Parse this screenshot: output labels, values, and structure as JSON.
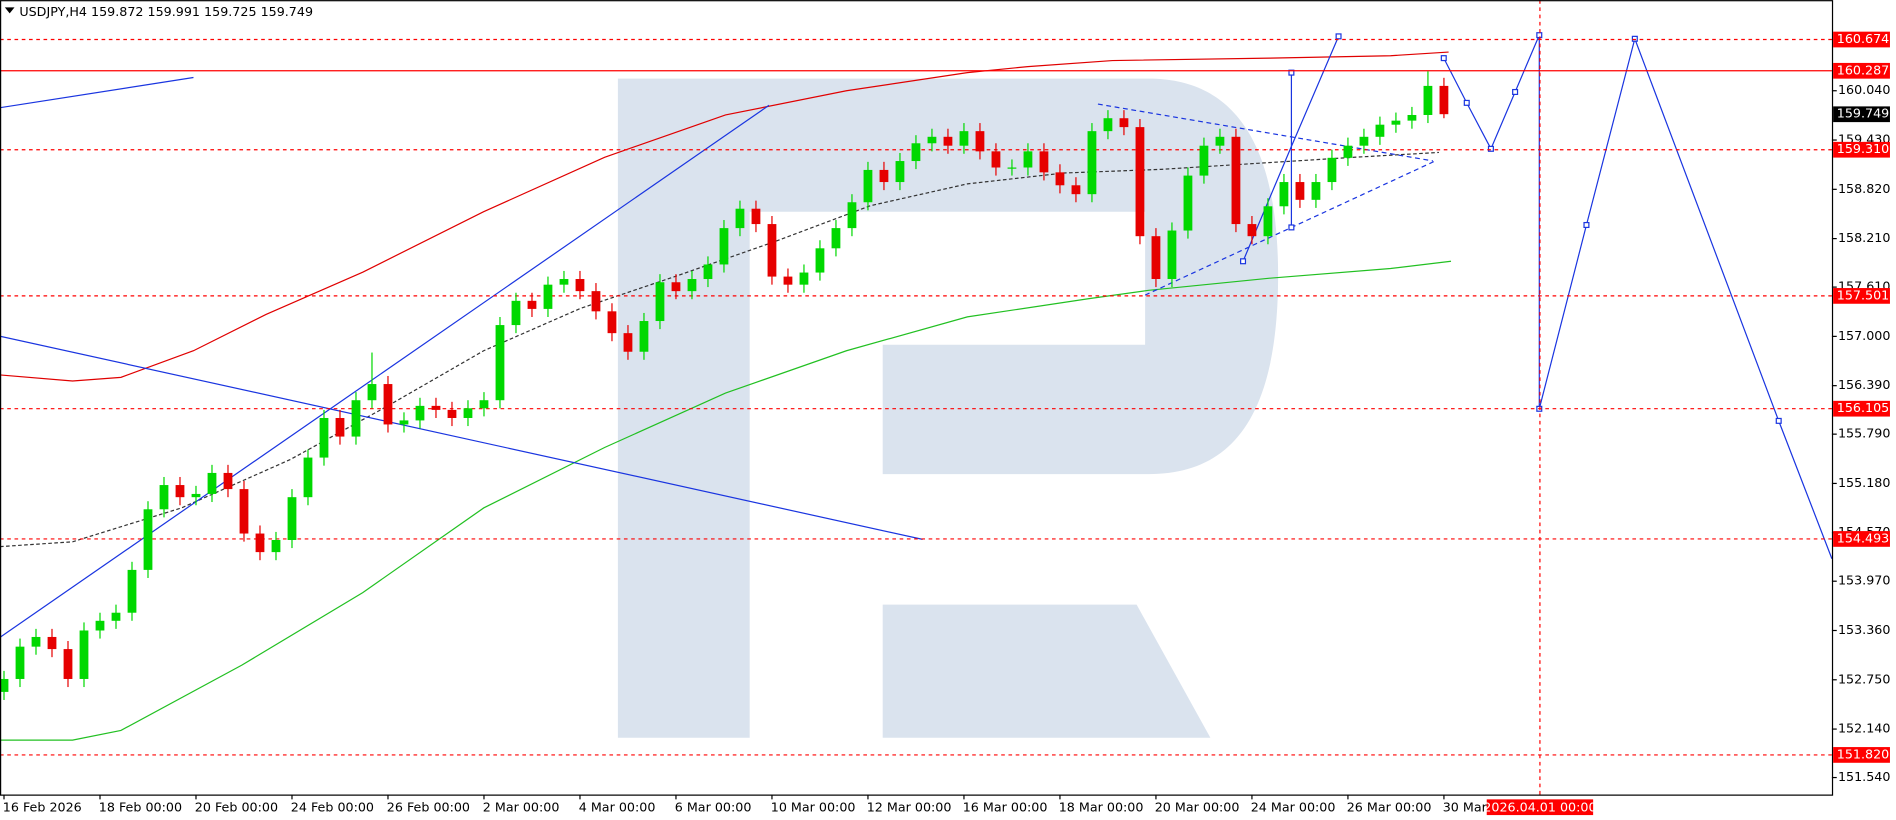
{
  "chart_data": {
    "type": "candlestick",
    "symbol": "USDJPY,H4",
    "ohlc": [
      159.872,
      159.991,
      159.725,
      159.749
    ],
    "x": [
      0,
      2,
      4,
      6,
      8,
      10,
      12,
      14,
      16,
      18,
      20,
      22,
      24,
      26,
      28,
      30,
      32,
      34,
      36,
      38,
      40,
      42,
      44,
      46,
      48,
      50,
      52,
      54,
      56,
      58,
      60,
      62,
      64,
      66,
      68,
      70,
      72,
      74,
      76,
      78,
      80,
      82,
      84,
      86,
      88,
      90,
      92,
      94,
      96,
      98,
      100,
      102,
      104,
      106,
      108,
      110,
      112,
      114,
      116,
      118,
      120,
      122,
      124,
      126,
      128,
      130,
      132,
      134,
      136,
      138,
      140,
      142,
      144,
      146,
      148,
      150,
      152,
      154,
      156,
      158,
      160,
      162,
      164,
      166,
      168,
      170,
      172,
      174,
      176,
      178,
      180
    ],
    "open": [
      152.6,
      152.76,
      153.16,
      153.28,
      153.13,
      152.76,
      153.36,
      153.48,
      153.58,
      154.11,
      154.86,
      155.16,
      155.01,
      155.05,
      155.31,
      155.11,
      154.56,
      154.33,
      154.48,
      155.01,
      155.5,
      155.99,
      155.76,
      156.21,
      156.41,
      155.91,
      155.96,
      156.14,
      156.09,
      155.99,
      156.11,
      156.21,
      157.14,
      157.44,
      157.34,
      157.64,
      157.71,
      157.56,
      157.31,
      157.04,
      156.81,
      157.19,
      157.67,
      157.56,
      157.71,
      157.89,
      158.34,
      158.58,
      158.39,
      157.74,
      157.64,
      157.79,
      158.09,
      158.34,
      158.66,
      159.06,
      158.91,
      159.17,
      159.39,
      159.47,
      159.36,
      159.54,
      159.29,
      159.09,
      159.09,
      159.29,
      159.03,
      158.87,
      158.76,
      159.54,
      159.7,
      159.59,
      158.24,
      157.71,
      158.31,
      158.99,
      159.36,
      159.47,
      158.39,
      158.24,
      158.61,
      158.91,
      158.69,
      158.91,
      159.21,
      159.36,
      159.47,
      159.62,
      159.67,
      159.74,
      160.1
    ],
    "high": [
      152.86,
      153.26,
      153.38,
      153.38,
      153.23,
      153.46,
      153.58,
      153.68,
      154.21,
      154.96,
      155.26,
      155.26,
      155.15,
      155.41,
      155.41,
      155.21,
      154.66,
      154.58,
      155.11,
      155.6,
      156.09,
      156.09,
      156.31,
      156.8,
      156.51,
      156.06,
      156.24,
      156.24,
      156.19,
      156.21,
      156.31,
      157.24,
      157.54,
      157.54,
      157.74,
      157.81,
      157.81,
      157.66,
      157.41,
      157.14,
      157.29,
      157.77,
      157.77,
      157.81,
      157.99,
      158.44,
      158.68,
      158.68,
      158.49,
      157.84,
      157.89,
      158.19,
      158.44,
      158.76,
      159.16,
      159.16,
      159.27,
      159.49,
      159.57,
      159.57,
      159.64,
      159.64,
      159.39,
      159.19,
      159.39,
      159.39,
      159.13,
      158.97,
      159.64,
      159.8,
      159.8,
      159.69,
      158.34,
      158.41,
      159.09,
      159.46,
      159.57,
      159.57,
      158.49,
      158.71,
      159.01,
      159.01,
      159.01,
      159.31,
      159.46,
      159.57,
      159.72,
      159.77,
      159.84,
      160.28,
      160.2
    ],
    "low": [
      152.5,
      152.66,
      153.06,
      153.03,
      152.66,
      152.66,
      153.26,
      153.38,
      153.48,
      154.01,
      154.76,
      154.91,
      154.91,
      154.95,
      155.01,
      154.46,
      154.23,
      154.23,
      154.38,
      154.91,
      155.4,
      155.66,
      155.66,
      156.11,
      155.81,
      155.81,
      155.86,
      155.99,
      155.89,
      155.89,
      156.01,
      156.11,
      157.04,
      157.24,
      157.24,
      157.54,
      157.46,
      157.21,
      156.94,
      156.71,
      156.71,
      157.09,
      157.46,
      157.46,
      157.61,
      157.79,
      158.24,
      158.29,
      157.64,
      157.54,
      157.54,
      157.69,
      157.99,
      158.24,
      158.56,
      158.81,
      158.81,
      159.07,
      159.29,
      159.26,
      159.26,
      159.19,
      158.99,
      158.99,
      158.99,
      158.93,
      158.77,
      158.66,
      158.66,
      159.44,
      159.49,
      158.14,
      157.61,
      157.61,
      158.21,
      158.89,
      159.26,
      158.29,
      158.14,
      158.14,
      158.51,
      158.59,
      158.59,
      158.81,
      159.11,
      159.26,
      159.37,
      159.52,
      159.57,
      159.64,
      159.7
    ],
    "close": [
      152.76,
      153.16,
      153.28,
      153.13,
      152.76,
      153.36,
      153.48,
      153.58,
      154.11,
      154.86,
      155.16,
      155.01,
      155.05,
      155.31,
      155.11,
      154.56,
      154.33,
      154.48,
      155.01,
      155.5,
      155.99,
      155.76,
      156.21,
      156.41,
      155.91,
      155.96,
      156.14,
      156.09,
      155.99,
      156.11,
      156.21,
      157.14,
      157.44,
      157.34,
      157.64,
      157.71,
      157.56,
      157.31,
      157.04,
      156.81,
      157.19,
      157.67,
      157.56,
      157.71,
      157.89,
      158.34,
      158.58,
      158.39,
      157.74,
      157.64,
      157.79,
      158.09,
      158.34,
      158.66,
      159.06,
      158.91,
      159.17,
      159.39,
      159.47,
      159.36,
      159.54,
      159.29,
      159.09,
      159.09,
      159.29,
      159.03,
      158.87,
      158.76,
      159.54,
      159.7,
      159.59,
      158.24,
      157.71,
      158.31,
      158.99,
      159.36,
      159.47,
      158.39,
      158.24,
      158.61,
      158.91,
      158.69,
      158.91,
      159.21,
      159.36,
      159.47,
      159.62,
      159.67,
      159.74,
      160.1,
      159.75
    ],
    "up_color": "#00d800",
    "down_color": "#e60000",
    "xlim": [
      -0.5,
      228.5
    ],
    "xticks": [
      {
        "value": 0,
        "label": "16 Feb 2026"
      },
      {
        "value": 12,
        "label": "18 Feb 00:00"
      },
      {
        "value": 24,
        "label": "20 Feb 00:00"
      },
      {
        "value": 36,
        "label": "24 Feb 00:00"
      },
      {
        "value": 48,
        "label": "26 Feb 00:00"
      },
      {
        "value": 60,
        "label": "2 Mar 00:00"
      },
      {
        "value": 72,
        "label": "4 Mar 00:00"
      },
      {
        "value": 84,
        "label": "6 Mar 00:00"
      },
      {
        "value": 96,
        "label": "10 Mar 00:00"
      },
      {
        "value": 108,
        "label": "12 Mar 00:00"
      },
      {
        "value": 120,
        "label": "16 Mar 00:00"
      },
      {
        "value": 132,
        "label": "18 Mar 00:00"
      },
      {
        "value": 144,
        "label": "20 Mar 00:00"
      },
      {
        "value": 156,
        "label": "24 Mar 00:00"
      },
      {
        "value": 168,
        "label": "26 Mar 00:00"
      },
      {
        "value": 180,
        "label": "30 Mar"
      }
    ],
    "crosshair": {
      "value": 192,
      "label": "2026.04.01 00:00"
    },
    "ylim": [
      151.33,
      161.162
    ],
    "yticks": [
      {
        "value": 160.04,
        "label": "160.040"
      },
      {
        "value": 159.43,
        "label": "159.430"
      },
      {
        "value": 158.82,
        "label": "158.820"
      },
      {
        "value": 158.21,
        "label": "158.210"
      },
      {
        "value": 157.61,
        "label": "157.610"
      },
      {
        "value": 157.0,
        "label": "157.000"
      },
      {
        "value": 156.39,
        "label": "156.390"
      },
      {
        "value": 155.79,
        "label": "155.790"
      },
      {
        "value": 155.18,
        "label": "155.180"
      },
      {
        "value": 154.57,
        "label": "154.570"
      },
      {
        "value": 153.97,
        "label": "153.970"
      },
      {
        "value": 153.36,
        "label": "153.360"
      },
      {
        "value": 152.75,
        "label": "152.750"
      },
      {
        "value": 152.14,
        "label": "152.140"
      },
      {
        "value": 151.54,
        "label": "151.540"
      }
    ],
    "levels": [
      {
        "value": 160.674,
        "style": "dashed"
      },
      {
        "value": 160.287,
        "style": "solid"
      },
      {
        "value": 159.31,
        "label": "159.310",
        "style": "dashed"
      },
      {
        "value": 157.501,
        "style": "dashed"
      },
      {
        "value": 156.105,
        "style": "dashed"
      },
      {
        "value": 154.493,
        "style": "dashed"
      },
      {
        "value": 151.82,
        "label": "151.820",
        "style": "dashed"
      }
    ],
    "level_color": "#ff0000",
    "last_price": 159.749
  }
}
